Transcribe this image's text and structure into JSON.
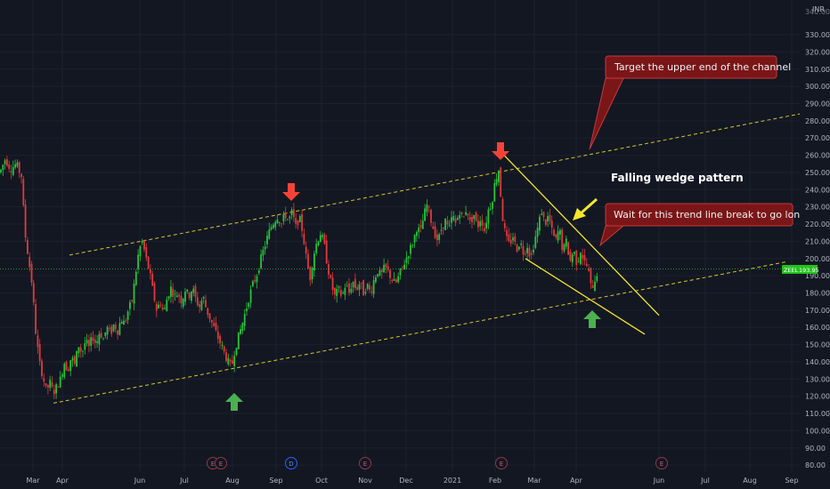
{
  "chart_data": {
    "type": "candlestick",
    "currency": "INR",
    "y_range": [
      78,
      345
    ],
    "y_ticks": [
      80,
      90,
      100,
      110,
      120,
      130,
      140,
      150,
      160,
      170,
      180,
      190,
      200,
      210,
      220,
      230,
      240,
      250,
      260,
      270,
      280,
      290,
      300,
      310,
      320,
      330
    ],
    "y_tick_labels": [
      "80.00",
      "90.00",
      "100.00",
      "110.00",
      "120.00",
      "130.00",
      "140.00",
      "150.00",
      "160.00",
      "170.00",
      "180.00",
      "190.00",
      "200.00",
      "210.00",
      "220.00",
      "230.00",
      "240.00",
      "250.00",
      "260.00",
      "270.00",
      "280.00",
      "290.00",
      "300.00",
      "310.00",
      "320.00",
      "330.00"
    ],
    "y_top_label": "340.00",
    "x_labels": [
      "Mar",
      "Apr",
      "Jun",
      "Jul",
      "Aug",
      "Sep",
      "Oct",
      "Nov",
      "Dec",
      "2021",
      "Feb",
      "Mar",
      "Apr",
      "Jun",
      "Jul",
      "Aug",
      "Sep"
    ],
    "current_price_label": "ZEEL",
    "current_price_value": "193.95",
    "current_price": 193.95,
    "price_points": [
      [
        0,
        250
      ],
      [
        6,
        258
      ],
      [
        12,
        252
      ],
      [
        18,
        255
      ],
      [
        24,
        248
      ],
      [
        28,
        215
      ],
      [
        32,
        200
      ],
      [
        36,
        185
      ],
      [
        40,
        158
      ],
      [
        44,
        140
      ],
      [
        48,
        132
      ],
      [
        52,
        123
      ],
      [
        56,
        128
      ],
      [
        60,
        122
      ],
      [
        64,
        126
      ],
      [
        68,
        130
      ],
      [
        72,
        140
      ],
      [
        76,
        135
      ],
      [
        80,
        143
      ],
      [
        84,
        138
      ],
      [
        88,
        150
      ],
      [
        92,
        145
      ],
      [
        96,
        152
      ],
      [
        100,
        148
      ],
      [
        104,
        155
      ],
      [
        108,
        150
      ],
      [
        112,
        158
      ],
      [
        116,
        153
      ],
      [
        120,
        160
      ],
      [
        124,
        156
      ],
      [
        128,
        162
      ],
      [
        132,
        158
      ],
      [
        136,
        165
      ],
      [
        140,
        162
      ],
      [
        144,
        170
      ],
      [
        148,
        175
      ],
      [
        152,
        190
      ],
      [
        156,
        205
      ],
      [
        160,
        210
      ],
      [
        164,
        200
      ],
      [
        168,
        192
      ],
      [
        172,
        180
      ],
      [
        176,
        170
      ],
      [
        180,
        175
      ],
      [
        184,
        168
      ],
      [
        188,
        178
      ],
      [
        192,
        183
      ],
      [
        196,
        178
      ],
      [
        200,
        180
      ],
      [
        204,
        175
      ],
      [
        208,
        182
      ],
      [
        212,
        178
      ],
      [
        216,
        183
      ],
      [
        220,
        176
      ],
      [
        224,
        172
      ],
      [
        228,
        178
      ],
      [
        232,
        170
      ],
      [
        236,
        165
      ],
      [
        240,
        160
      ],
      [
        244,
        155
      ],
      [
        248,
        150
      ],
      [
        252,
        145
      ],
      [
        256,
        140
      ],
      [
        260,
        137
      ],
      [
        264,
        148
      ],
      [
        268,
        155
      ],
      [
        272,
        162
      ],
      [
        276,
        170
      ],
      [
        280,
        178
      ],
      [
        284,
        185
      ],
      [
        288,
        190
      ],
      [
        292,
        198
      ],
      [
        296,
        205
      ],
      [
        300,
        212
      ],
      [
        304,
        218
      ],
      [
        308,
        222
      ],
      [
        312,
        225
      ],
      [
        316,
        220
      ],
      [
        320,
        226
      ],
      [
        324,
        222
      ],
      [
        328,
        227
      ],
      [
        332,
        218
      ],
      [
        336,
        224
      ],
      [
        340,
        215
      ],
      [
        344,
        200
      ],
      [
        348,
        188
      ],
      [
        352,
        202
      ],
      [
        356,
        210
      ],
      [
        360,
        215
      ],
      [
        364,
        208
      ],
      [
        368,
        195
      ],
      [
        372,
        185
      ],
      [
        376,
        178
      ],
      [
        380,
        182
      ],
      [
        384,
        178
      ],
      [
        388,
        185
      ],
      [
        392,
        180
      ],
      [
        396,
        187
      ],
      [
        400,
        182
      ],
      [
        404,
        186
      ],
      [
        408,
        180
      ],
      [
        412,
        185
      ],
      [
        416,
        180
      ],
      [
        420,
        188
      ],
      [
        424,
        193
      ],
      [
        428,
        190
      ],
      [
        432,
        195
      ],
      [
        436,
        192
      ],
      [
        440,
        188
      ],
      [
        444,
        185
      ],
      [
        448,
        190
      ],
      [
        452,
        195
      ],
      [
        456,
        200
      ],
      [
        460,
        205
      ],
      [
        464,
        210
      ],
      [
        468,
        218
      ],
      [
        472,
        215
      ],
      [
        476,
        225
      ],
      [
        480,
        232
      ],
      [
        484,
        222
      ],
      [
        488,
        215
      ],
      [
        492,
        210
      ],
      [
        496,
        218
      ],
      [
        500,
        222
      ],
      [
        504,
        216
      ],
      [
        508,
        225
      ],
      [
        512,
        220
      ],
      [
        516,
        228
      ],
      [
        520,
        222
      ],
      [
        524,
        230
      ],
      [
        528,
        220
      ],
      [
        532,
        226
      ],
      [
        536,
        218
      ],
      [
        540,
        224
      ],
      [
        544,
        216
      ],
      [
        548,
        228
      ],
      [
        552,
        232
      ],
      [
        556,
        245
      ],
      [
        560,
        252
      ],
      [
        564,
        225
      ],
      [
        568,
        212
      ],
      [
        572,
        208
      ],
      [
        576,
        213
      ],
      [
        580,
        205
      ],
      [
        584,
        210
      ],
      [
        588,
        203
      ],
      [
        592,
        208
      ],
      [
        596,
        200
      ],
      [
        600,
        210
      ],
      [
        604,
        218
      ],
      [
        608,
        228
      ],
      [
        612,
        220
      ],
      [
        616,
        225
      ],
      [
        620,
        215
      ],
      [
        624,
        210
      ],
      [
        628,
        218
      ],
      [
        632,
        204
      ],
      [
        636,
        210
      ],
      [
        640,
        198
      ],
      [
        644,
        205
      ],
      [
        648,
        197
      ],
      [
        652,
        205
      ],
      [
        656,
        198
      ],
      [
        660,
        195
      ],
      [
        664,
        182
      ],
      [
        668,
        188
      ],
      [
        672,
        194
      ]
    ],
    "channel": {
      "upper": [
        [
          78,
          202
        ],
        [
          898,
          284
        ]
      ],
      "lower": [
        [
          60,
          116
        ],
        [
          882,
          198
        ]
      ]
    },
    "wedge": {
      "upper": [
        [
          566,
          260
        ],
        [
          740,
          167
        ]
      ],
      "lower": [
        [
          590,
          200
        ],
        [
          724,
          156
        ]
      ]
    },
    "annotations": [
      {
        "text": "Target the upper end of the channel"
      },
      {
        "text": "Wait for this trend line break to go long"
      },
      {
        "text": "Falling wedge pattern"
      }
    ],
    "event_markers": [
      "E",
      "E",
      "D",
      "E",
      "E",
      "E"
    ],
    "colors": {
      "up": "#26c43a",
      "down": "#e03a3a",
      "channel": "#d4c72e",
      "wedge": "#f5e829",
      "arrow_up": "#4caf50",
      "arrow_down": "#f44336",
      "callout": "#7a1618",
      "price_tag": "#23c11c"
    }
  }
}
